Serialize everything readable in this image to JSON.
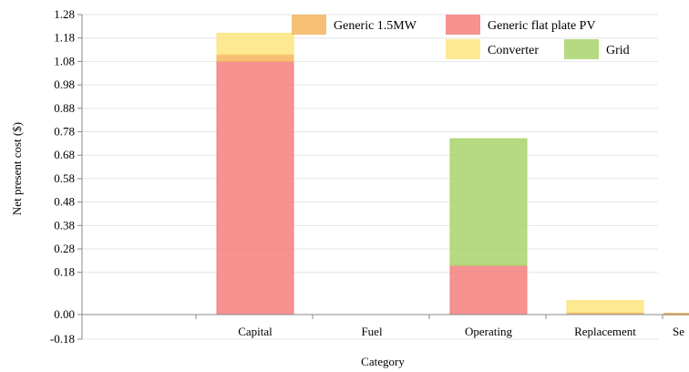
{
  "chart_data": {
    "type": "bar",
    "stacked": true,
    "title": "",
    "xlabel": "Category",
    "ylabel": "Net present cost ($)",
    "categories": [
      "Capital",
      "Fuel",
      "Operating",
      "Replacement",
      "Se"
    ],
    "y_ticks": [
      "1.28",
      "1.18",
      "1.08",
      "0.98",
      "0.88",
      "0.78",
      "0.68",
      "0.58",
      "0.48",
      "0.38",
      "0.28",
      "0.18",
      "0.00",
      "-0.18"
    ],
    "ylim": [
      -0.18,
      1.28
    ],
    "grid": true,
    "legend_position": "top-right",
    "series": [
      {
        "name": "Generic flat plate PV",
        "color": "#f47f7c",
        "values": [
          1.08,
          0,
          0.21,
          0,
          0
        ]
      },
      {
        "name": "Generic 1.5MW",
        "color": "#f5b45e",
        "values": [
          0.03,
          0,
          0,
          0.01,
          0
        ]
      },
      {
        "name": "Grid",
        "color": "#a9d46b",
        "values": [
          0,
          0,
          0.54,
          0,
          0
        ]
      },
      {
        "name": "Converter",
        "color": "#fbe57e",
        "values": [
          0.09,
          0,
          0,
          0.05,
          0
        ]
      }
    ]
  }
}
